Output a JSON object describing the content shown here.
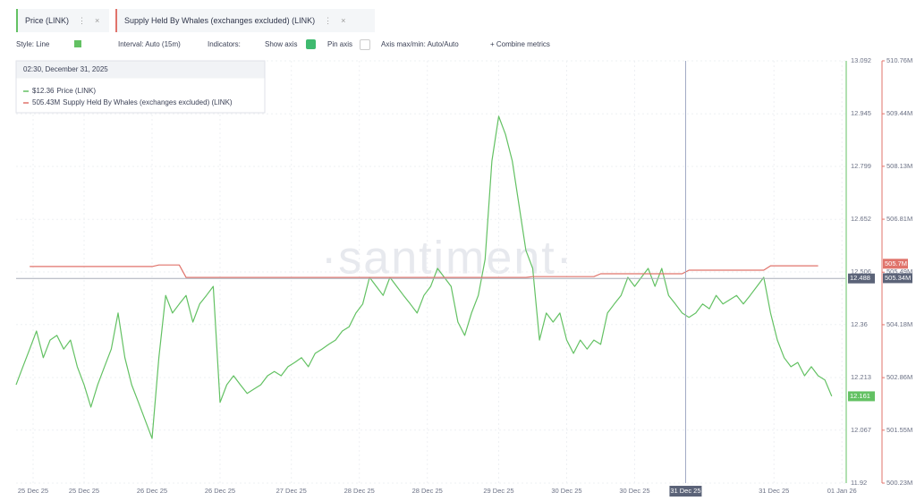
{
  "ui": {
    "toolbar": {
      "style": "Style: Line",
      "interval": "Interval: Auto (15m)",
      "indicators": "Indicators:",
      "show_axis": "Show axis",
      "pin_axis": "Pin axis",
      "axis_minmax": "Axis max/min: Auto/Auto",
      "combine": "+ Combine metrics"
    },
    "watermark": "·santiment·",
    "tooltip": {
      "time": "02:30, December 31, 2025",
      "values": [
        "$12.36",
        "505.43M"
      ]
    }
  },
  "chart_data": {
    "type": "line",
    "xlim": [
      0,
      122
    ],
    "xticks": [
      {
        "value": 2.5,
        "label": "25 Dec 25"
      },
      {
        "value": 10,
        "label": "25 Dec 25"
      },
      {
        "value": 20,
        "label": "26 Dec 25"
      },
      {
        "value": 30,
        "label": "26 Dec 25"
      },
      {
        "value": 40.5,
        "label": "27 Dec 25"
      },
      {
        "value": 50.5,
        "label": "28 Dec 25"
      },
      {
        "value": 60.5,
        "label": "28 Dec 25"
      },
      {
        "value": 71,
        "label": "29 Dec 25"
      },
      {
        "value": 81,
        "label": "30 Dec 25"
      },
      {
        "value": 91,
        "label": "30 Dec 25"
      },
      {
        "value": 111.5,
        "label": "31 Dec 25"
      },
      {
        "value": 121.5,
        "label": "01 Jan 26"
      }
    ],
    "ylim": [
      11.92,
      13.092
    ],
    "yticks": [
      13.092,
      12.945,
      12.799,
      12.652,
      12.506,
      12.36,
      12.213,
      12.067,
      11.92
    ],
    "y2lim": [
      500230000,
      510760000
    ],
    "y2ticks": [
      {
        "value": 510760000,
        "label": "510.76M"
      },
      {
        "value": 509440000,
        "label": "509.44M"
      },
      {
        "value": 508130000,
        "label": "508.13M"
      },
      {
        "value": 506810000,
        "label": "506.81M"
      },
      {
        "value": 505490000,
        "label": "505.49M"
      },
      {
        "value": 504180000,
        "label": "504.18M"
      },
      {
        "value": 502860000,
        "label": "502.86M"
      },
      {
        "value": 501550000,
        "label": "501.55M"
      },
      {
        "value": 500230000,
        "label": "500.23M"
      }
    ],
    "grid": true,
    "series": [
      {
        "name": "Price (LINK)",
        "color": "#63c163",
        "axis": "y",
        "values": [
          12.193,
          12.243,
          12.292,
          12.342,
          12.268,
          12.317,
          12.33,
          12.292,
          12.317,
          12.243,
          12.193,
          12.131,
          12.193,
          12.243,
          12.292,
          12.392,
          12.268,
          12.193,
          12.144,
          12.094,
          12.044,
          12.268,
          12.441,
          12.392,
          12.417,
          12.441,
          12.367,
          12.417,
          12.441,
          12.466,
          12.144,
          12.193,
          12.218,
          12.193,
          12.169,
          12.181,
          12.193,
          12.218,
          12.23,
          12.218,
          12.243,
          12.255,
          12.268,
          12.243,
          12.28,
          12.292,
          12.305,
          12.317,
          12.342,
          12.354,
          12.392,
          12.417,
          12.491,
          12.466,
          12.441,
          12.491,
          12.466,
          12.441,
          12.417,
          12.392,
          12.441,
          12.466,
          12.516,
          12.491,
          12.466,
          12.367,
          12.33,
          12.392,
          12.441,
          12.541,
          12.814,
          12.938,
          12.888,
          12.814,
          12.69,
          12.566,
          12.516,
          12.317,
          12.392,
          12.367,
          12.392,
          12.317,
          12.28,
          12.317,
          12.292,
          12.317,
          12.305,
          12.392,
          12.417,
          12.441,
          12.491,
          12.466,
          12.491,
          12.516,
          12.466,
          12.516,
          12.441,
          12.417,
          12.392,
          12.38,
          12.392,
          12.417,
          12.404,
          12.441,
          12.417,
          12.429,
          12.441,
          12.417,
          12.441,
          12.466,
          12.491,
          12.392,
          12.317,
          12.268,
          12.243,
          12.255,
          12.218,
          12.243,
          12.218,
          12.206,
          12.161
        ]
      },
      {
        "name": "Supply Held By Whales (exchanges excluded) (LINK)",
        "color": "#e0736b",
        "axis": "y2",
        "values": [
          null,
          null,
          505630000,
          505630000,
          505630000,
          505630000,
          505630000,
          505630000,
          505630000,
          505630000,
          505630000,
          505630000,
          505630000,
          505630000,
          505630000,
          505630000,
          505630000,
          505630000,
          505630000,
          505630000,
          505630000,
          505670000,
          505670000,
          505670000,
          505670000,
          505360000,
          505360000,
          505360000,
          505360000,
          505360000,
          505360000,
          505360000,
          505360000,
          505360000,
          505360000,
          505360000,
          505360000,
          505360000,
          505360000,
          505360000,
          505360000,
          505360000,
          505360000,
          505360000,
          505360000,
          505360000,
          505360000,
          505360000,
          505360000,
          505360000,
          505360000,
          505360000,
          505360000,
          505360000,
          505360000,
          505360000,
          505360000,
          505360000,
          505360000,
          505360000,
          505360000,
          505360000,
          505360000,
          505360000,
          505360000,
          505360000,
          505360000,
          505360000,
          505360000,
          505360000,
          505360000,
          505360000,
          505360000,
          505360000,
          505360000,
          505360000,
          505380000,
          505380000,
          505380000,
          505380000,
          505380000,
          505380000,
          505380000,
          505380000,
          505380000,
          505380000,
          505450000,
          505450000,
          505450000,
          505450000,
          505450000,
          505450000,
          505450000,
          505450000,
          505450000,
          505450000,
          505450000,
          505450000,
          505450000,
          505540000,
          505540000,
          505540000,
          505540000,
          505540000,
          505540000,
          505540000,
          505540000,
          505540000,
          505540000,
          505540000,
          505540000,
          505650000,
          505650000,
          505650000,
          505650000,
          505650000,
          505650000,
          505650000,
          505650000,
          null,
          null
        ]
      }
    ],
    "crosshair": {
      "x": 98.5,
      "x_label": "31 Dec 25",
      "y": 12.488,
      "y2": {
        "value": 505340000,
        "label": "505.34M"
      }
    },
    "last_values": {
      "y": 12.161,
      "y2": {
        "value": 505700000,
        "label": "505.7M"
      }
    }
  }
}
